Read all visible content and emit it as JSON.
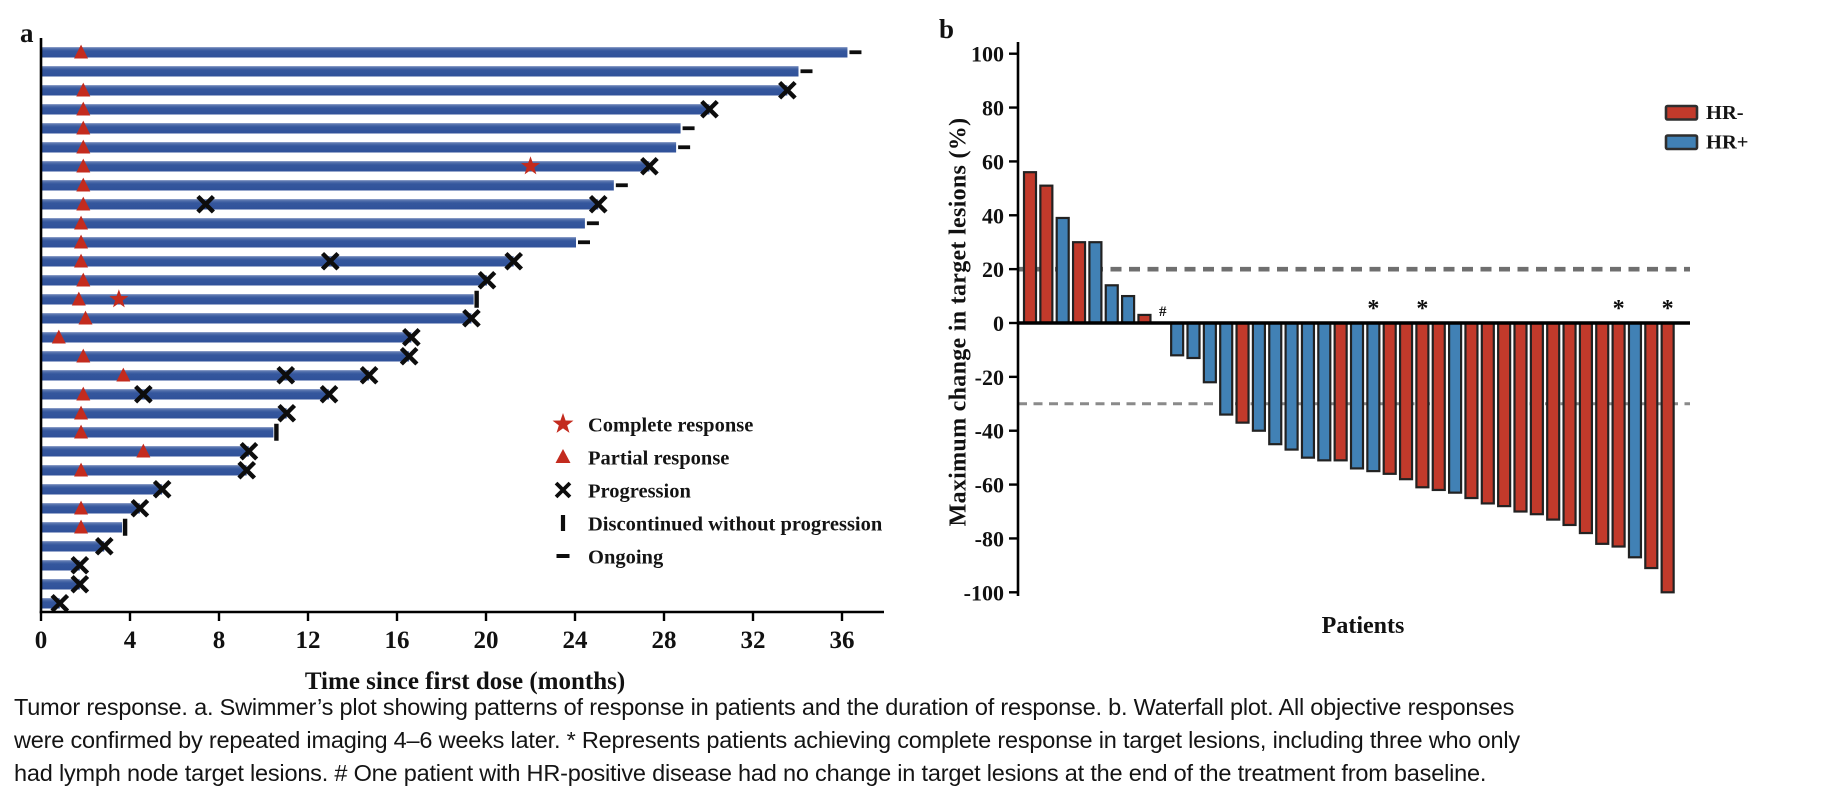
{
  "figure": {
    "panel_a_label": "a",
    "panel_b_label": "b",
    "caption": "Tumor response. a. Swimmer’s plot showing patterns of response in patients and the duration of response. b. Waterfall plot. All objective responses were confirmed by repeated imaging 4–6 weeks later. * Represents patients achieving complete response in target lesions, including three who only had lymph node target lesions. # One patient with HR-positive disease had no change in target lesions at the end of the treatment from baseline."
  },
  "chart_data": [
    {
      "id": "swimmer_plot",
      "type": "bar",
      "orientation": "horizontal",
      "title": "",
      "xlabel": "Time since first dose (months)",
      "ylabel": "",
      "xlim": [
        0,
        38
      ],
      "x_ticks": [
        0,
        4,
        8,
        12,
        16,
        20,
        24,
        28,
        32,
        36
      ],
      "grid": false,
      "bar_color": "#35579D",
      "response_marker_color": "#C32B1E",
      "event_marker_color": "#0d0d0d",
      "legend_position": "lower right inside",
      "legend": [
        {
          "marker": "star",
          "label": "Complete response"
        },
        {
          "marker": "triangle",
          "label": "Partial response"
        },
        {
          "marker": "x",
          "label": "Progression"
        },
        {
          "marker": "tick",
          "label": "Discontinued without progression"
        },
        {
          "marker": "dash",
          "label": "Ongoing"
        }
      ],
      "patients": [
        {
          "duration": 36.2,
          "end": "ongoing",
          "partial_response_at": 1.8
        },
        {
          "duration": 34.0,
          "end": "ongoing"
        },
        {
          "duration": 33.5,
          "end": "progression",
          "partial_response_at": 1.9
        },
        {
          "duration": 30.0,
          "end": "progression",
          "partial_response_at": 1.9
        },
        {
          "duration": 28.7,
          "end": "ongoing",
          "partial_response_at": 1.9
        },
        {
          "duration": 28.5,
          "end": "ongoing",
          "partial_response_at": 1.9
        },
        {
          "duration": 27.3,
          "end": "progression",
          "partial_response_at": 1.9,
          "complete_response_at": 22.0
        },
        {
          "duration": 25.7,
          "end": "ongoing",
          "partial_response_at": 1.9
        },
        {
          "duration": 25.0,
          "end": "progression",
          "partial_response_at": 1.9,
          "progression_marks": [
            7.4
          ]
        },
        {
          "duration": 24.4,
          "end": "ongoing",
          "partial_response_at": 1.8
        },
        {
          "duration": 24.0,
          "end": "ongoing",
          "partial_response_at": 1.8
        },
        {
          "duration": 21.2,
          "end": "progression",
          "partial_response_at": 1.8,
          "progression_marks": [
            13.0
          ]
        },
        {
          "duration": 20.0,
          "end": "progression",
          "partial_response_at": 1.9
        },
        {
          "duration": 19.4,
          "end": "discontinued",
          "partial_response_at": 1.7,
          "complete_response_at": 3.5
        },
        {
          "duration": 19.3,
          "end": "progression",
          "partial_response_at": 2.0
        },
        {
          "duration": 16.6,
          "end": "progression",
          "partial_response_at": 0.8
        },
        {
          "duration": 16.5,
          "end": "progression",
          "partial_response_at": 1.9
        },
        {
          "duration": 14.7,
          "end": "progression",
          "partial_response_at": 3.7,
          "progression_marks": [
            11.0
          ]
        },
        {
          "duration": 12.9,
          "end": "progression",
          "partial_response_at": 1.9,
          "progression_marks": [
            4.6
          ]
        },
        {
          "duration": 11.0,
          "end": "progression",
          "partial_response_at": 1.8
        },
        {
          "duration": 10.4,
          "end": "discontinued",
          "partial_response_at": 1.8
        },
        {
          "duration": 9.3,
          "end": "progression",
          "partial_response_at": 4.6
        },
        {
          "duration": 9.2,
          "end": "progression",
          "partial_response_at": 1.8
        },
        {
          "duration": 5.4,
          "end": "progression"
        },
        {
          "duration": 4.4,
          "end": "progression",
          "partial_response_at": 1.8
        },
        {
          "duration": 3.6,
          "end": "discontinued",
          "partial_response_at": 1.8
        },
        {
          "duration": 2.8,
          "end": "progression"
        },
        {
          "duration": 1.7,
          "end": "progression"
        },
        {
          "duration": 1.7,
          "end": "progression"
        },
        {
          "duration": 0.8,
          "end": "progression"
        }
      ]
    },
    {
      "id": "waterfall_plot",
      "type": "bar",
      "title": "",
      "xlabel": "Patients",
      "ylabel": "Maximum change in target lesions (%)",
      "ylim": [
        -100,
        100
      ],
      "y_ticks": [
        100,
        80,
        60,
        40,
        20,
        0,
        -20,
        -40,
        -60,
        -80,
        -100
      ],
      "grid": false,
      "reference_lines_pct": [
        20,
        -30
      ],
      "reference_line_color": "#6f6f6f",
      "bar_outline_color": "#222222",
      "legend_position": "upper right",
      "groups": [
        {
          "name": "HR-",
          "color": "#C23A2B"
        },
        {
          "name": "HR+",
          "color": "#4181B5"
        }
      ],
      "patients": [
        {
          "change_pct": 56,
          "group": "HR-"
        },
        {
          "change_pct": 51,
          "group": "HR-"
        },
        {
          "change_pct": 39,
          "group": "HR+"
        },
        {
          "change_pct": 30,
          "group": "HR-"
        },
        {
          "change_pct": 30,
          "group": "HR+"
        },
        {
          "change_pct": 14,
          "group": "HR+"
        },
        {
          "change_pct": 10,
          "group": "HR+"
        },
        {
          "change_pct": 3,
          "group": "HR-"
        },
        {
          "change_pct": 0,
          "group": "HR+",
          "annotation": "#"
        },
        {
          "change_pct": -12,
          "group": "HR+"
        },
        {
          "change_pct": -13,
          "group": "HR+"
        },
        {
          "change_pct": -22,
          "group": "HR+"
        },
        {
          "change_pct": -34,
          "group": "HR+"
        },
        {
          "change_pct": -37,
          "group": "HR-"
        },
        {
          "change_pct": -40,
          "group": "HR+"
        },
        {
          "change_pct": -45,
          "group": "HR+"
        },
        {
          "change_pct": -47,
          "group": "HR+"
        },
        {
          "change_pct": -50,
          "group": "HR+"
        },
        {
          "change_pct": -51,
          "group": "HR+"
        },
        {
          "change_pct": -51,
          "group": "HR-"
        },
        {
          "change_pct": -54,
          "group": "HR+"
        },
        {
          "change_pct": -55,
          "group": "HR+",
          "annotation": "*"
        },
        {
          "change_pct": -56,
          "group": "HR-"
        },
        {
          "change_pct": -58,
          "group": "HR-"
        },
        {
          "change_pct": -61,
          "group": "HR-",
          "annotation": "*"
        },
        {
          "change_pct": -62,
          "group": "HR-"
        },
        {
          "change_pct": -63,
          "group": "HR+"
        },
        {
          "change_pct": -65,
          "group": "HR-"
        },
        {
          "change_pct": -67,
          "group": "HR-"
        },
        {
          "change_pct": -68,
          "group": "HR-"
        },
        {
          "change_pct": -70,
          "group": "HR-"
        },
        {
          "change_pct": -71,
          "group": "HR-"
        },
        {
          "change_pct": -73,
          "group": "HR-"
        },
        {
          "change_pct": -75,
          "group": "HR-"
        },
        {
          "change_pct": -78,
          "group": "HR-"
        },
        {
          "change_pct": -82,
          "group": "HR-"
        },
        {
          "change_pct": -83,
          "group": "HR-",
          "annotation": "*"
        },
        {
          "change_pct": -87,
          "group": "HR+"
        },
        {
          "change_pct": -91,
          "group": "HR-"
        },
        {
          "change_pct": -100,
          "group": "HR-",
          "annotation": "*"
        }
      ]
    }
  ]
}
